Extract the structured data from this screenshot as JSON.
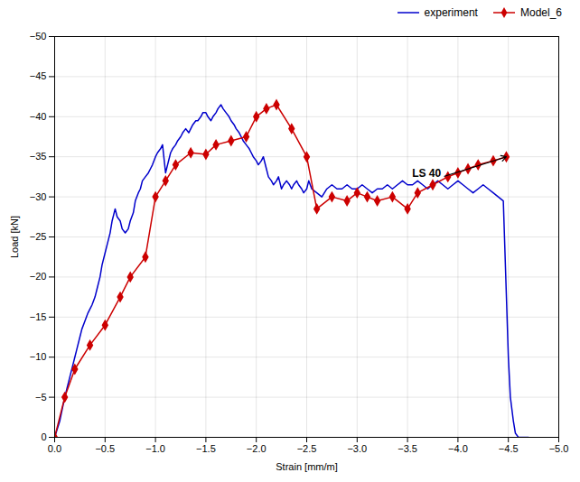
{
  "chart_data": {
    "type": "line",
    "xlabel": "Strain [mm/m]",
    "ylabel": "Load [kN]",
    "xlim": [
      0,
      -5
    ],
    "ylim": [
      0,
      -50
    ],
    "xticks": [
      {
        "value": 0,
        "label": "0.0"
      },
      {
        "value": -0.5,
        "label": "−0.5"
      },
      {
        "value": -1.0,
        "label": "−1.0"
      },
      {
        "value": -1.5,
        "label": "−1.5"
      },
      {
        "value": -2.0,
        "label": "−2.0"
      },
      {
        "value": -2.5,
        "label": "−2.5"
      },
      {
        "value": -3.0,
        "label": "−3.0"
      },
      {
        "value": -3.5,
        "label": "−3.5"
      },
      {
        "value": -4.0,
        "label": "−4.0"
      },
      {
        "value": -4.5,
        "label": "−4.5"
      },
      {
        "value": -5.0,
        "label": "−5.0"
      }
    ],
    "yticks": [
      0,
      -5,
      -10,
      -15,
      -20,
      -25,
      -30,
      -35,
      -40,
      -45,
      -50
    ],
    "grid": true,
    "legend": "upper right",
    "annotations": [
      {
        "text": "LS 40",
        "xy": [
          -4.48,
          -35.0
        ],
        "xytext": [
          -3.85,
          -32.5
        ]
      }
    ],
    "series": [
      {
        "name": "experiment",
        "color": "#0000cc",
        "marker": "none",
        "x": [
          0,
          -0.05,
          -0.1,
          -0.12,
          -0.15,
          -0.18,
          -0.2,
          -0.22,
          -0.25,
          -0.27,
          -0.3,
          -0.33,
          -0.35,
          -0.37,
          -0.4,
          -0.42,
          -0.45,
          -0.47,
          -0.5,
          -0.52,
          -0.55,
          -0.57,
          -0.6,
          -0.62,
          -0.65,
          -0.67,
          -0.7,
          -0.73,
          -0.75,
          -0.78,
          -0.8,
          -0.83,
          -0.85,
          -0.87,
          -0.9,
          -0.93,
          -0.95,
          -0.97,
          -1.0,
          -1.02,
          -1.05,
          -1.07,
          -1.1,
          -1.12,
          -1.15,
          -1.17,
          -1.2,
          -1.22,
          -1.25,
          -1.27,
          -1.3,
          -1.33,
          -1.35,
          -1.37,
          -1.4,
          -1.42,
          -1.45,
          -1.47,
          -1.5,
          -1.52,
          -1.55,
          -1.57,
          -1.6,
          -1.62,
          -1.65,
          -1.67,
          -1.7,
          -1.73,
          -1.75,
          -1.78,
          -1.8,
          -1.83,
          -1.85,
          -1.87,
          -1.9,
          -1.93,
          -1.95,
          -1.97,
          -2.0,
          -2.02,
          -2.05,
          -2.07,
          -2.1,
          -2.12,
          -2.15,
          -2.17,
          -2.2,
          -2.22,
          -2.25,
          -2.27,
          -2.3,
          -2.33,
          -2.35,
          -2.37,
          -2.4,
          -2.42,
          -2.45,
          -2.47,
          -2.5,
          -2.52,
          -2.55,
          -2.6,
          -2.65,
          -2.7,
          -2.75,
          -2.8,
          -2.85,
          -2.9,
          -2.95,
          -3.0,
          -3.05,
          -3.1,
          -3.15,
          -3.2,
          -3.25,
          -3.3,
          -3.35,
          -3.4,
          -3.45,
          -3.5,
          -3.55,
          -3.6,
          -3.65,
          -3.7,
          -3.75,
          -3.8,
          -3.85,
          -3.9,
          -3.95,
          -4.0,
          -4.05,
          -4.1,
          -4.15,
          -4.2,
          -4.25,
          -4.3,
          -4.35,
          -4.4,
          -4.45,
          -4.5,
          -4.52,
          -4.55,
          -4.57,
          -4.6,
          -4.62,
          -4.65,
          -4.68,
          -4.7
        ],
        "values": [
          0,
          -2.0,
          -5.0,
          -6.0,
          -7.5,
          -9.0,
          -10.0,
          -11.0,
          -12.5,
          -13.5,
          -14.5,
          -15.5,
          -16.0,
          -16.5,
          -17.5,
          -18.5,
          -20.0,
          -21.5,
          -23.0,
          -24.0,
          -25.5,
          -27.0,
          -28.5,
          -27.5,
          -27.0,
          -26.0,
          -25.5,
          -26.0,
          -27.0,
          -28.0,
          -29.5,
          -30.5,
          -31.0,
          -32.0,
          -32.5,
          -33.0,
          -33.5,
          -34.0,
          -35.0,
          -35.5,
          -36.0,
          -36.5,
          -33.0,
          -34.0,
          -35.5,
          -36.0,
          -36.5,
          -37.0,
          -37.5,
          -38.0,
          -38.5,
          -38.0,
          -38.5,
          -39.0,
          -39.5,
          -39.5,
          -40.0,
          -40.5,
          -40.5,
          -40.0,
          -39.5,
          -40.0,
          -40.5,
          -41.0,
          -41.5,
          -41.0,
          -40.5,
          -40.0,
          -39.5,
          -39.0,
          -38.5,
          -38.0,
          -37.5,
          -37.0,
          -36.5,
          -36.0,
          -35.5,
          -35.0,
          -34.5,
          -34.0,
          -34.5,
          -35.0,
          -33.5,
          -32.5,
          -32.0,
          -31.5,
          -32.0,
          -32.5,
          -31.0,
          -31.5,
          -32.0,
          -31.5,
          -31.0,
          -31.5,
          -32.0,
          -31.5,
          -31.0,
          -30.5,
          -31.0,
          -32.0,
          -31.0,
          -30.5,
          -30.0,
          -31.0,
          -31.5,
          -31.0,
          -31.0,
          -31.5,
          -31.0,
          -31.0,
          -31.5,
          -31.0,
          -30.5,
          -31.0,
          -31.0,
          -31.5,
          -31.0,
          -31.5,
          -32.0,
          -31.5,
          -31.5,
          -32.0,
          -31.5,
          -31.0,
          -31.5,
          -32.0,
          -31.5,
          -31.0,
          -31.5,
          -32.0,
          -31.5,
          -31.0,
          -30.5,
          -31.0,
          -31.5,
          -31.0,
          -30.5,
          -30.0,
          -29.5,
          -10.0,
          -5.0,
          -2.0,
          -0.5,
          0,
          0,
          0,
          0,
          0
        ]
      },
      {
        "name": "Model_6",
        "color": "#cc0000",
        "marker": "diamond",
        "x": [
          0,
          -0.1,
          -0.2,
          -0.35,
          -0.5,
          -0.65,
          -0.75,
          -0.9,
          -1.0,
          -1.1,
          -1.2,
          -1.35,
          -1.5,
          -1.6,
          -1.75,
          -1.9,
          -2.0,
          -2.1,
          -2.2,
          -2.35,
          -2.5,
          -2.6,
          -2.75,
          -2.9,
          -3.0,
          -3.1,
          -3.2,
          -3.35,
          -3.5,
          -3.6,
          -3.75,
          -3.9,
          -4.0,
          -4.1,
          -4.2,
          -4.35,
          -4.48
        ],
        "values": [
          0,
          -5.0,
          -8.5,
          -11.5,
          -14.0,
          -17.5,
          -20.0,
          -22.5,
          -30.0,
          -32.0,
          -34.0,
          -35.5,
          -35.3,
          -36.5,
          -37.0,
          -37.5,
          -40.0,
          -41.0,
          -41.5,
          -38.5,
          -35.0,
          -28.5,
          -30.0,
          -29.5,
          -30.5,
          -30.0,
          -29.5,
          -30.0,
          -28.5,
          -30.5,
          -31.5,
          -32.5,
          -33.0,
          -33.5,
          -34.0,
          -34.5,
          -35.0
        ]
      }
    ]
  }
}
